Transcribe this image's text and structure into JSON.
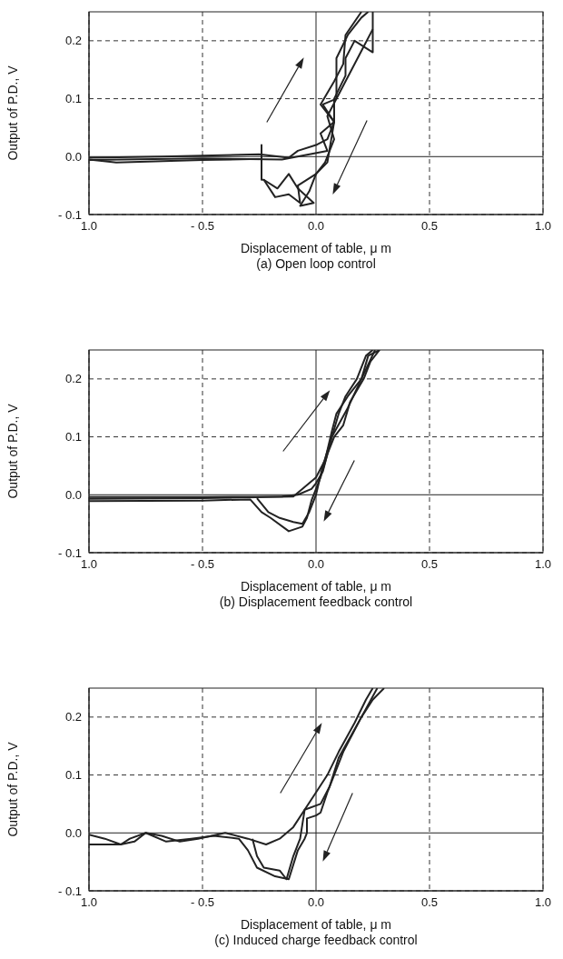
{
  "chart_data": [
    {
      "type": "line",
      "title": "(a)  Open loop control",
      "xlabel": "Displacement of table,  μ m",
      "ylabel": "Output of P.D., V",
      "xlim": [
        -1,
        1
      ],
      "xticks": [
        {
          "value": -1,
          "label": "1.0"
        },
        {
          "value": -0.5,
          "label": "- 0.5"
        },
        {
          "value": 0,
          "label": "0.0"
        },
        {
          "value": 0.5,
          "label": "0.5"
        },
        {
          "value": 1,
          "label": "1.0"
        }
      ],
      "ylim": [
        -0.1,
        0.25
      ],
      "yticks": [
        {
          "value": -0.1,
          "label": "- 0.1"
        },
        {
          "value": 0,
          "label": "0.0"
        },
        {
          "value": 0.1,
          "label": "0.1"
        },
        {
          "value": 0.2,
          "label": "0.2"
        }
      ],
      "grid": true,
      "marker": "none",
      "line_style": "solid",
      "series": [
        {
          "color": "#222222",
          "x": [
            -1,
            -0.68,
            -0.25,
            -0.12,
            -0.08,
            0.0,
            0.05,
            0.08,
            0.02,
            0.08,
            0.12,
            0.13,
            0.2
          ],
          "values": [
            -0.002,
            0.0,
            0.004,
            -0.002,
            0.01,
            0.02,
            0.03,
            0.06,
            0.09,
            0.13,
            0.16,
            0.21,
            0.25
          ]
        },
        {
          "color": "#222222",
          "x": [
            0.25,
            0.25,
            0.17,
            0.13,
            0.13,
            0.08,
            0.08,
            0.05,
            0.0,
            -0.08,
            -0.07,
            -0.12,
            -0.18,
            -0.23,
            -0.24,
            -0.24,
            -0.24,
            -0.5,
            -0.88,
            -1
          ],
          "values": [
            0.25,
            0.18,
            0.2,
            0.17,
            0.14,
            0.1,
            0.06,
            -0.01,
            -0.03,
            -0.05,
            -0.08,
            -0.065,
            -0.07,
            -0.04,
            -0.04,
            0.02,
            -0.004,
            -0.006,
            -0.01,
            -0.005
          ]
        },
        {
          "color": "#222222",
          "x": [
            -1,
            -0.5,
            -0.15,
            0.05,
            0.02,
            0.08,
            0.03,
            0.09,
            0.09,
            0.14,
            0.2,
            0.23
          ],
          "values": [
            -0.006,
            -0.003,
            -0.005,
            0.01,
            0.04,
            0.06,
            0.09,
            0.1,
            0.17,
            0.21,
            0.24,
            0.25
          ]
        },
        {
          "color": "#222222",
          "x": [
            0.25,
            0.21,
            0.13,
            0.05,
            0.08,
            0.04,
            0.0,
            -0.03,
            -0.07,
            -0.01,
            -0.08,
            -0.12,
            -0.17,
            -0.23
          ],
          "values": [
            0.22,
            0.19,
            0.13,
            0.07,
            0.03,
            -0.01,
            -0.03,
            -0.06,
            -0.085,
            -0.08,
            -0.055,
            -0.03,
            -0.055,
            -0.04
          ]
        }
      ]
    },
    {
      "type": "line",
      "title": "(b)  Displacement feedback control",
      "xlabel": "Displacement of table,  μ m",
      "ylabel": "Output of P.D., V",
      "xlim": [
        -1,
        1
      ],
      "xticks": [
        {
          "value": -1,
          "label": "1.0"
        },
        {
          "value": -0.5,
          "label": "- 0.5"
        },
        {
          "value": 0,
          "label": "0.0"
        },
        {
          "value": 0.5,
          "label": "0.5"
        },
        {
          "value": 1,
          "label": "1.0"
        }
      ],
      "ylim": [
        -0.1,
        0.25
      ],
      "yticks": [
        {
          "value": -0.1,
          "label": "- 0.1"
        },
        {
          "value": 0,
          "label": "0.0"
        },
        {
          "value": 0.1,
          "label": "0.1"
        },
        {
          "value": 0.2,
          "label": "0.2"
        }
      ],
      "grid": true,
      "marker": "none",
      "line_style": "solid",
      "series": [
        {
          "color": "#222222",
          "x": [
            -1,
            -0.5,
            -0.15,
            -0.08,
            -0.02,
            0.0,
            0.03,
            0.05,
            0.07,
            0.1,
            0.13,
            0.18,
            0.22,
            0.25
          ],
          "values": [
            -0.004,
            -0.004,
            -0.003,
            0.0,
            0.01,
            0.02,
            0.04,
            0.07,
            0.1,
            0.14,
            0.17,
            0.2,
            0.24,
            0.25
          ]
        },
        {
          "color": "#222222",
          "x": [
            -1,
            -0.5,
            -0.1,
            0.0,
            0.04,
            0.07,
            0.09,
            0.14,
            0.2,
            0.23,
            0.28
          ],
          "values": [
            -0.007,
            -0.006,
            -0.003,
            0.03,
            0.06,
            0.11,
            0.14,
            0.17,
            0.2,
            0.24,
            0.25
          ]
        },
        {
          "color": "#222222",
          "x": [
            0.28,
            0.24,
            0.21,
            0.15,
            0.12,
            0.08,
            0.05,
            0.02,
            -0.02,
            -0.04,
            -0.06,
            -0.12,
            -0.2,
            -0.24,
            -0.29,
            -0.5,
            -1
          ],
          "values": [
            0.25,
            0.23,
            0.2,
            0.16,
            0.12,
            0.1,
            0.07,
            0.03,
            -0.01,
            -0.04,
            -0.055,
            -0.063,
            -0.04,
            -0.03,
            -0.008,
            -0.01,
            -0.011
          ]
        },
        {
          "color": "#222222",
          "x": [
            0.26,
            0.2,
            0.14,
            0.07,
            0.03,
            0.0,
            -0.03,
            -0.06,
            -0.1,
            -0.16,
            -0.21,
            -0.26
          ],
          "values": [
            0.25,
            0.2,
            0.15,
            0.1,
            0.05,
            0.0,
            -0.03,
            -0.05,
            -0.047,
            -0.04,
            -0.03,
            -0.006
          ]
        }
      ]
    },
    {
      "type": "line",
      "title": "(c)  Induced charge feedback control",
      "xlabel": "Displacement of table,  μ m",
      "ylabel": "Output of P.D., V",
      "xlim": [
        -1,
        1
      ],
      "xticks": [
        {
          "value": -1,
          "label": "1.0"
        },
        {
          "value": -0.5,
          "label": "- 0.5"
        },
        {
          "value": 0,
          "label": "0.0"
        },
        {
          "value": 0.5,
          "label": "0.5"
        },
        {
          "value": 1,
          "label": "1.0"
        }
      ],
      "ylim": [
        -0.1,
        0.25
      ],
      "yticks": [
        {
          "value": -0.1,
          "label": "- 0.1"
        },
        {
          "value": 0,
          "label": "0.0"
        },
        {
          "value": 0.1,
          "label": "0.1"
        },
        {
          "value": 0.2,
          "label": "0.2"
        }
      ],
      "grid": true,
      "marker": "none",
      "line_style": "solid",
      "series": [
        {
          "color": "#222222",
          "x": [
            -1,
            -0.93,
            -0.86,
            -0.8,
            -0.75,
            -0.68,
            -0.6,
            -0.52,
            -0.4,
            -0.3,
            -0.22,
            -0.16,
            -0.1,
            -0.05,
            0.0,
            0.05,
            0.1,
            0.17,
            0.22,
            0.25
          ],
          "values": [
            -0.003,
            -0.01,
            -0.02,
            -0.015,
            0.0,
            -0.005,
            -0.015,
            -0.01,
            0.0,
            -0.01,
            -0.02,
            -0.01,
            0.01,
            0.04,
            0.07,
            0.1,
            0.14,
            0.19,
            0.23,
            0.25
          ]
        },
        {
          "color": "#222222",
          "x": [
            0.3,
            0.25,
            0.2,
            0.12,
            0.08,
            0.05,
            0.02,
            0.0,
            -0.04,
            -0.04,
            -0.05,
            -0.08,
            -0.12,
            -0.18,
            -0.26,
            -0.3,
            -0.34,
            -0.45,
            -0.55,
            -0.66,
            -0.75,
            -0.82,
            -0.86,
            -0.93,
            -1
          ],
          "values": [
            0.25,
            0.23,
            0.2,
            0.14,
            0.1,
            0.07,
            0.035,
            0.03,
            0.025,
            0.0,
            -0.01,
            -0.03,
            -0.08,
            -0.075,
            -0.06,
            -0.03,
            -0.01,
            -0.005,
            -0.01,
            -0.015,
            0.0,
            -0.01,
            -0.02,
            -0.02,
            -0.02
          ]
        },
        {
          "color": "#222222",
          "x": [
            0.27,
            0.2,
            0.1,
            0.06,
            0.02,
            -0.05,
            -0.07,
            -0.1,
            -0.13,
            -0.16,
            -0.23,
            -0.26,
            -0.28
          ],
          "values": [
            0.25,
            0.2,
            0.13,
            0.08,
            0.05,
            0.04,
            -0.01,
            -0.04,
            -0.08,
            -0.065,
            -0.06,
            -0.04,
            -0.01
          ]
        }
      ]
    }
  ]
}
